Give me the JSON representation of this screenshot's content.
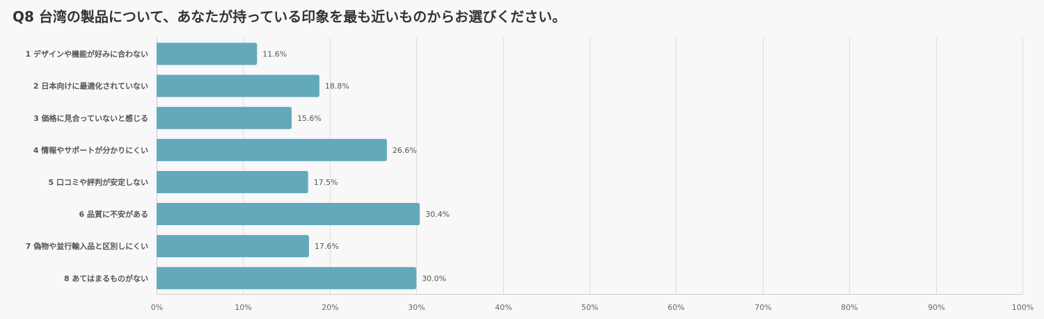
{
  "chart_data": {
    "type": "bar",
    "orientation": "horizontal",
    "title": "Q8 台湾の製品について、あなたが持っている印象を最も近いものからお選びください。",
    "categories": [
      "1 デザインや機能が好みに合わない",
      "2 日本向けに最適化されていない",
      "3 価格に見合っていないと感じる",
      "4 情報やサポートが分かりにくい",
      "5 口コミや評判が安定しない",
      "6 品質に不安がある",
      "7 偽物や並行輸入品と区別しにくい",
      "8 あてはまるものがない"
    ],
    "values": [
      11.6,
      18.8,
      15.6,
      26.6,
      17.5,
      30.4,
      17.6,
      30.0
    ],
    "value_labels": [
      "11.6%",
      "18.8%",
      "15.6%",
      "26.6%",
      "17.5%",
      "30.4%",
      "17.6%",
      "30.0%"
    ],
    "xlim": [
      0,
      100
    ],
    "x_ticks": [
      "0%",
      "10%",
      "20%",
      "30%",
      "40%",
      "50%",
      "60%",
      "70%",
      "80%",
      "90%",
      "100%"
    ],
    "xlabel": "",
    "ylabel": "",
    "grid": true,
    "legend": "none",
    "bar_color": "#62aabb"
  }
}
